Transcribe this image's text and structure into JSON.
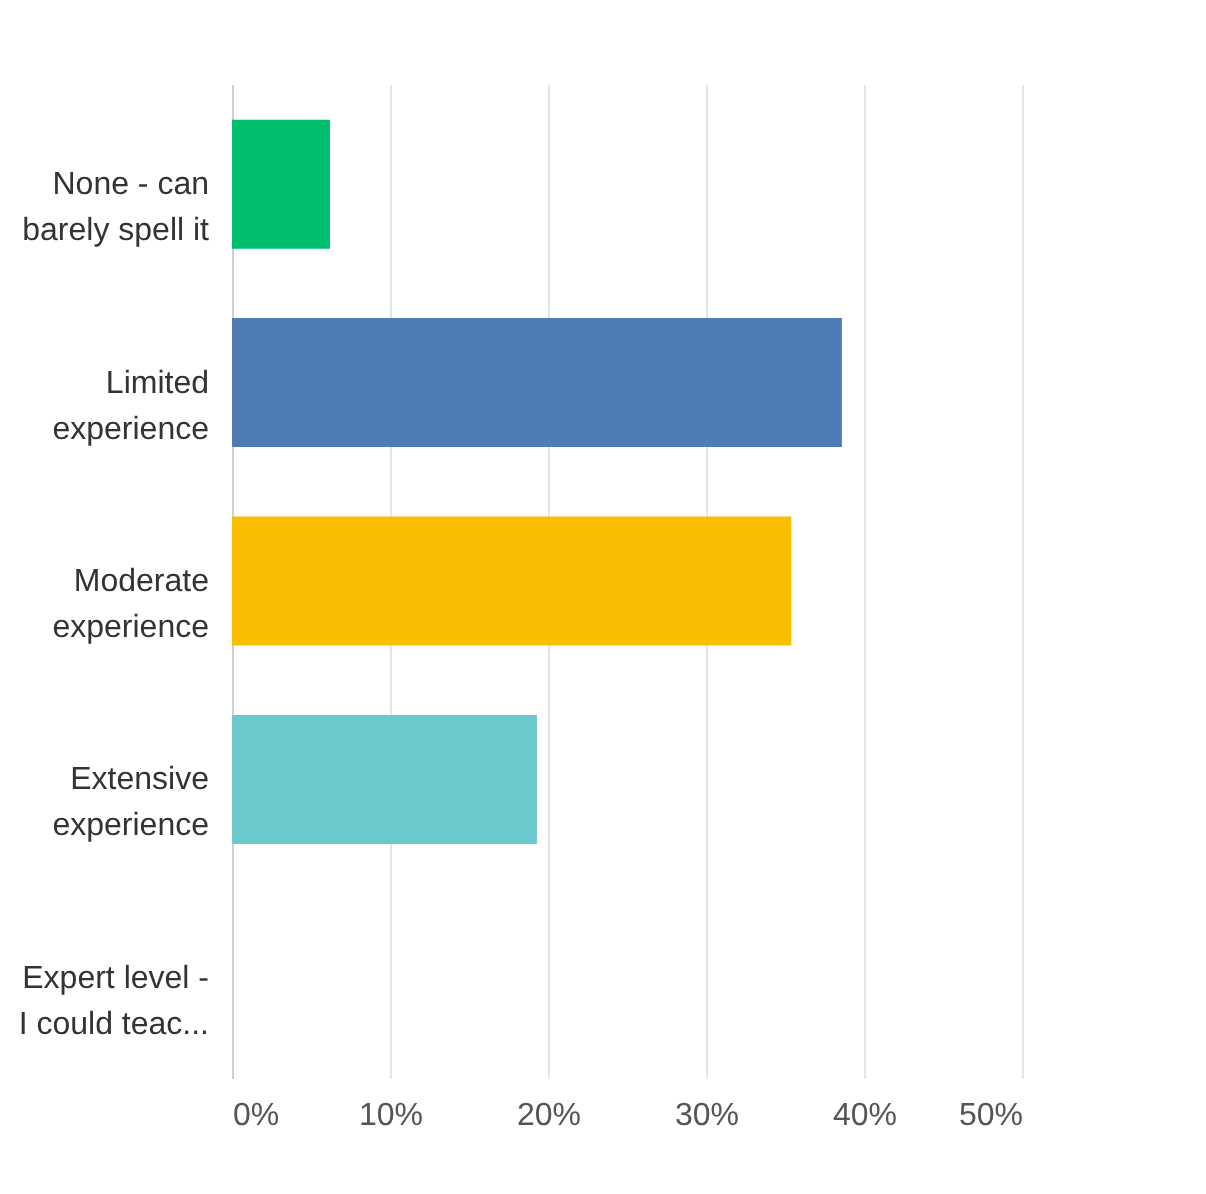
{
  "chart_data": {
    "type": "bar",
    "orientation": "horizontal",
    "categories": [
      "None - can\nbarely spell it",
      "Limited\nexperience",
      "Moderate\nexperience",
      "Extensive\nexperience",
      "Expert level -\nI could teac..."
    ],
    "values": [
      6.2,
      38.6,
      35.4,
      19.3,
      0
    ],
    "colors": [
      "#00bf6f",
      "#507cb6",
      "#f9be00",
      "#6bc8cd",
      "#dbdbdb"
    ],
    "xlim": [
      0,
      50
    ],
    "xticks": [
      {
        "value": 0,
        "label": "0%"
      },
      {
        "value": 10,
        "label": "10%"
      },
      {
        "value": 20,
        "label": "20%"
      },
      {
        "value": 30,
        "label": "30%"
      },
      {
        "value": 40,
        "label": "40%"
      },
      {
        "value": 50,
        "label": "50%"
      }
    ],
    "grid": "x"
  }
}
